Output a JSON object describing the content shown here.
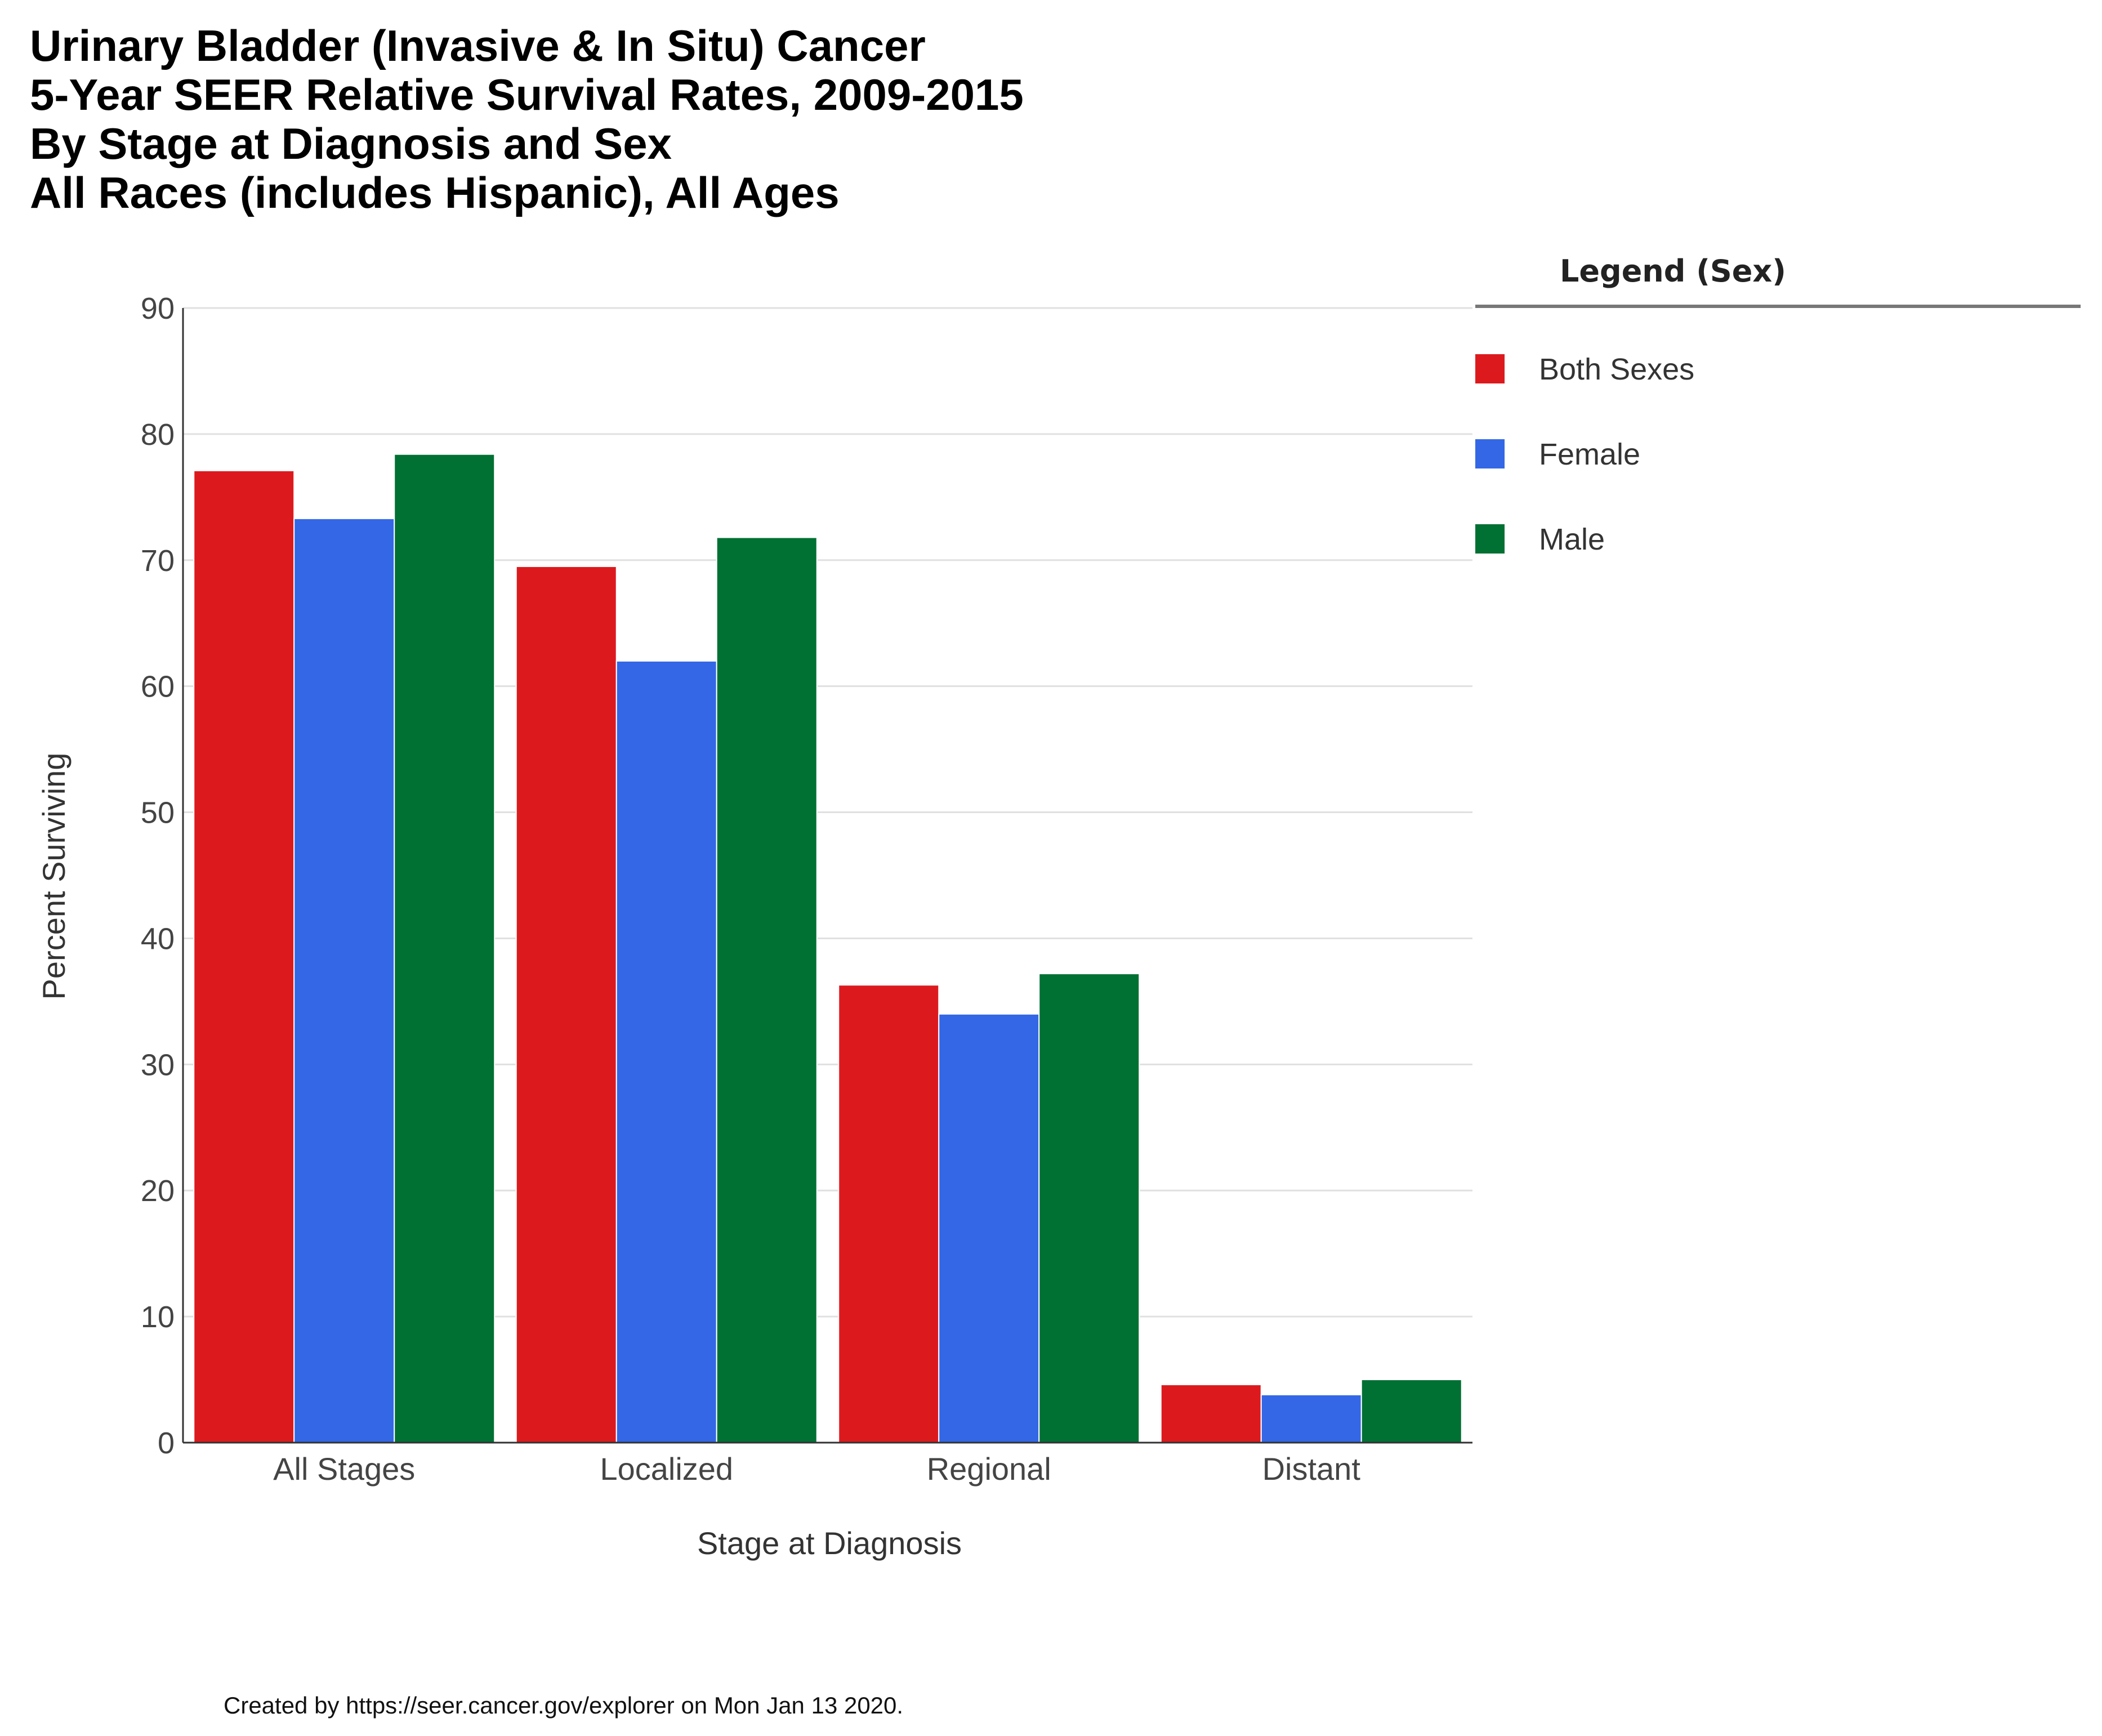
{
  "chart_data": {
    "type": "bar",
    "title_lines": [
      "Urinary Bladder (Invasive & In Situ) Cancer",
      "5-Year SEER Relative Survival Rates, 2009-2015",
      "By Stage at Diagnosis and Sex",
      "All Races (includes Hispanic), All Ages"
    ],
    "xlabel": "Stage at Diagnosis",
    "ylabel": "Percent Surviving",
    "categories": [
      "All Stages",
      "Localized",
      "Regional",
      "Distant"
    ],
    "ylim": [
      0,
      90
    ],
    "yticks": [
      "0",
      "10",
      "20",
      "30",
      "40",
      "50",
      "60",
      "70",
      "80",
      "90"
    ],
    "grid": true,
    "legend_position": "right",
    "legend_title": "Legend (Sex)",
    "series": [
      {
        "name": "Both Sexes",
        "color": "#dc1a1e",
        "values": [
          77.1,
          69.5,
          36.3,
          4.6
        ]
      },
      {
        "name": "Female",
        "color": "#3367e6",
        "values": [
          73.3,
          62.0,
          34.0,
          3.8
        ]
      },
      {
        "name": "Male",
        "color": "#007033",
        "values": [
          78.4,
          71.8,
          37.2,
          5.0
        ]
      }
    ]
  },
  "footer": "Created by https://seer.cancer.gov/explorer on Mon Jan 13 2020."
}
